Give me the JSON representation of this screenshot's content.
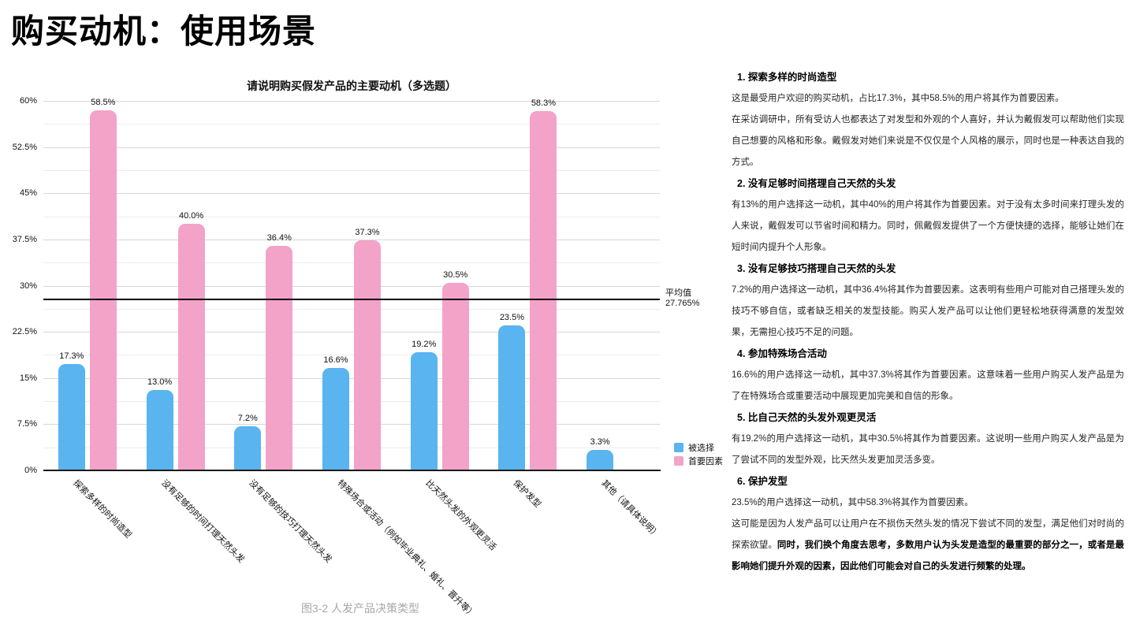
{
  "page": {
    "title": "购买动机：使用场景",
    "caption": "图3-2 人发产品决策类型"
  },
  "chart_data": {
    "type": "bar",
    "title": "请说明购买假发产品的主要动机（多选题）",
    "categories": [
      "探索多样的时尚造型",
      "没有足够的时间打理天然头发",
      "没有足够的技巧打理天然头发",
      "特殊场合或活动（例如毕业典礼、婚礼、晋升等）",
      "比天然头发的外观更灵活",
      "保护发型",
      "其他（请具体说明）"
    ],
    "series": [
      {
        "name": "被选择",
        "color": "#59b4f0",
        "values": [
          17.3,
          13.0,
          7.2,
          16.6,
          19.2,
          23.5,
          3.3
        ]
      },
      {
        "name": "首要因素",
        "color": "#f3a3c7",
        "values": [
          58.5,
          40.0,
          36.4,
          37.3,
          30.5,
          58.3,
          null
        ]
      }
    ],
    "average": {
      "value": 27.765,
      "label": "平均值",
      "value_label": "27.765%"
    },
    "y_axis": {
      "min": 0,
      "max": 60,
      "major_step": 7.5,
      "minor_step": 3.75,
      "tick_labels": [
        "0%",
        "7.5%",
        "15%",
        "22.5%",
        "30%",
        "37.5%",
        "45%",
        "52.5%",
        "60%"
      ]
    },
    "grid": true,
    "legend_position": "bottom-right"
  },
  "right_panel": {
    "sections": [
      {
        "heading": "1. 探索多样的时尚造型",
        "paragraphs": [
          [
            {
              "text": "这是最受用户欢迎的购买动机，占比17.3%，其中58.5%的用户将其作为首要因素。",
              "bold": false
            }
          ],
          [
            {
              "text": "在采访调研中，所有受访人也都表达了对发型和外观的个人喜好，并认为戴假发可以帮助他们实现自己想要的风格和形象。戴假发对她们来说是不仅仅是个人风格的展示，同时也是一种表达自我的方式。",
              "bold": false
            }
          ]
        ]
      },
      {
        "heading": "2. 没有足够时间搭理自己天然的头发",
        "paragraphs": [
          [
            {
              "text": "有13%的用户选择这一动机，其中40%的用户将其作为首要因素。对于没有太多时间来打理头发的人来说，戴假发可以节省时间和精力。同时，佩戴假发提供了一个方便快捷的选择，能够让她们在短时间内提升个人形象。",
              "bold": false
            }
          ]
        ]
      },
      {
        "heading": "3. 没有足够技巧搭理自己天然的头发",
        "paragraphs": [
          [
            {
              "text": "7.2%的用户选择这一动机，其中36.4%将其作为首要因素。这表明有些用户可能对自己搭理头发的技巧不够自信，或者缺乏相关的发型技能。购买人发产品可以让他们更轻松地获得满意的发型效果，无需担心技巧不足的问题。",
              "bold": false
            }
          ]
        ]
      },
      {
        "heading": "4. 参加特殊场合活动",
        "paragraphs": [
          [
            {
              "text": "16.6%的用户选择这一动机，其中37.3%将其作为首要因素。这意味着一些用户购买人发产品是为了在特殊场合或重要活动中展现更加完美和自信的形象。",
              "bold": false
            }
          ]
        ]
      },
      {
        "heading": "5. 比自己天然的头发外观更灵活",
        "paragraphs": [
          [
            {
              "text": "有19.2%的用户选择这一动机，其中30.5%将其作为首要因素。这说明一些用户购买人发产品是为了尝试不同的发型外观，比天然头发更加灵活多变。",
              "bold": false
            }
          ]
        ]
      },
      {
        "heading": "6. 保护发型",
        "paragraphs": [
          [
            {
              "text": "23.5%的用户选择这一动机，其中58.3%将其作为首要因素。",
              "bold": false
            }
          ],
          [
            {
              "text": "这可能是因为人发产品可以让用户在不损伤天然头发的情况下尝试不同的发型，满足他们对时尚的探索欲望。",
              "bold": false
            },
            {
              "text": "同时，我们换个角度去思考，多数用户认为头发是造型的最重要的部分之一，或者是最影响她们提升外观的因素，因此他们可能会对自己的头发进行频繁的处理。",
              "bold": true
            }
          ]
        ]
      }
    ]
  }
}
